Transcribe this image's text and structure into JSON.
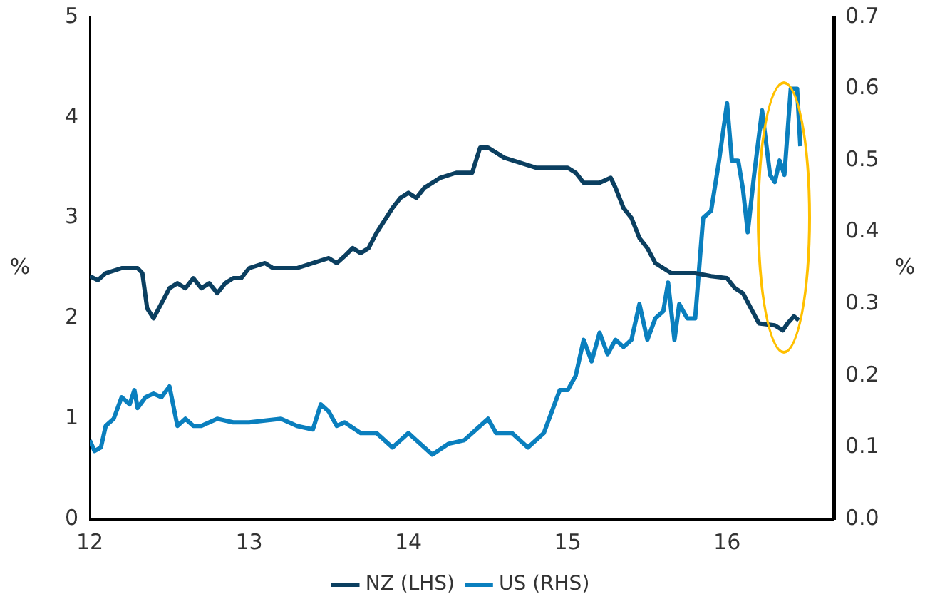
{
  "chart_data": {
    "type": "line",
    "ylabel": "%",
    "y2label": "%",
    "xlim": [
      12,
      16.67
    ],
    "xticks": [
      12,
      13,
      14,
      15,
      16
    ],
    "ylim": [
      0,
      5
    ],
    "yticks": [
      0,
      1,
      2,
      3,
      4,
      5
    ],
    "y2lim": [
      0,
      0.7
    ],
    "y2ticks": [
      {
        "value": 0,
        "label": "0.0"
      },
      0.1,
      0.2,
      0.3,
      0.4,
      0.5,
      0.6,
      0.7
    ],
    "grid": false,
    "legend": "bottom",
    "marker": "none",
    "line_style": "solid",
    "series": [
      {
        "name": "NZ (LHS)",
        "color": "#0b3f60",
        "x": [
          12.0,
          12.05,
          12.1,
          12.2,
          12.3,
          12.33,
          12.36,
          12.4,
          12.45,
          12.5,
          12.55,
          12.6,
          12.65,
          12.7,
          12.75,
          12.8,
          12.85,
          12.9,
          12.95,
          13.0,
          13.1,
          13.15,
          13.3,
          13.4,
          13.5,
          13.55,
          13.6,
          13.65,
          13.7,
          13.75,
          13.8,
          13.9,
          13.95,
          14.0,
          14.05,
          14.1,
          14.2,
          14.3,
          14.4,
          14.45,
          14.5,
          14.55,
          14.6,
          14.7,
          14.8,
          14.9,
          15.0,
          15.05,
          15.1,
          15.2,
          15.27,
          15.3,
          15.35,
          15.4,
          15.45,
          15.5,
          15.55,
          15.6,
          15.65,
          15.7,
          15.8,
          15.9,
          16.0,
          16.05,
          16.1,
          16.15,
          16.2,
          16.3,
          16.35,
          16.38,
          16.42,
          16.45
        ],
        "values": [
          2.42,
          2.38,
          2.45,
          2.5,
          2.5,
          2.45,
          2.1,
          2.0,
          2.15,
          2.3,
          2.35,
          2.3,
          2.4,
          2.3,
          2.35,
          2.25,
          2.35,
          2.4,
          2.4,
          2.5,
          2.55,
          2.5,
          2.5,
          2.55,
          2.6,
          2.55,
          2.62,
          2.7,
          2.65,
          2.7,
          2.85,
          3.1,
          3.2,
          3.25,
          3.2,
          3.3,
          3.4,
          3.45,
          3.45,
          3.7,
          3.7,
          3.65,
          3.6,
          3.55,
          3.5,
          3.5,
          3.5,
          3.45,
          3.35,
          3.35,
          3.4,
          3.3,
          3.1,
          3.0,
          2.8,
          2.7,
          2.55,
          2.5,
          2.45,
          2.45,
          2.45,
          2.42,
          2.4,
          2.3,
          2.25,
          2.1,
          1.95,
          1.93,
          1.88,
          1.95,
          2.02,
          1.98
        ]
      },
      {
        "name": "US (RHS)",
        "color": "#0a7fbe",
        "axis": "y2",
        "x": [
          12.0,
          12.03,
          12.07,
          12.1,
          12.15,
          12.2,
          12.25,
          12.28,
          12.3,
          12.35,
          12.4,
          12.45,
          12.5,
          12.55,
          12.6,
          12.65,
          12.7,
          12.8,
          12.9,
          13.0,
          13.2,
          13.3,
          13.4,
          13.45,
          13.5,
          13.55,
          13.6,
          13.7,
          13.8,
          13.9,
          14.0,
          14.05,
          14.15,
          14.25,
          14.35,
          14.45,
          14.5,
          14.55,
          14.65,
          14.75,
          14.85,
          14.9,
          14.95,
          15.0,
          15.05,
          15.1,
          15.15,
          15.2,
          15.25,
          15.3,
          15.35,
          15.4,
          15.45,
          15.5,
          15.55,
          15.6,
          15.63,
          15.67,
          15.7,
          15.75,
          15.8,
          15.85,
          15.9,
          15.95,
          16.0,
          16.03,
          16.07,
          16.1,
          16.13,
          16.17,
          16.22,
          16.27,
          16.3,
          16.33,
          16.36,
          16.4,
          16.44,
          16.46
        ],
        "values": [
          0.11,
          0.095,
          0.1,
          0.13,
          0.14,
          0.17,
          0.16,
          0.18,
          0.155,
          0.17,
          0.175,
          0.17,
          0.185,
          0.13,
          0.14,
          0.13,
          0.13,
          0.14,
          0.135,
          0.135,
          0.14,
          0.13,
          0.125,
          0.16,
          0.15,
          0.13,
          0.135,
          0.12,
          0.12,
          0.1,
          0.12,
          0.11,
          0.09,
          0.105,
          0.11,
          0.13,
          0.14,
          0.12,
          0.12,
          0.1,
          0.12,
          0.15,
          0.18,
          0.18,
          0.2,
          0.25,
          0.22,
          0.26,
          0.23,
          0.25,
          0.24,
          0.25,
          0.3,
          0.25,
          0.28,
          0.29,
          0.33,
          0.25,
          0.3,
          0.28,
          0.28,
          0.42,
          0.43,
          0.5,
          0.58,
          0.5,
          0.5,
          0.46,
          0.4,
          0.48,
          0.57,
          0.48,
          0.47,
          0.5,
          0.48,
          0.6,
          0.6,
          0.52
        ]
      }
    ]
  }
}
